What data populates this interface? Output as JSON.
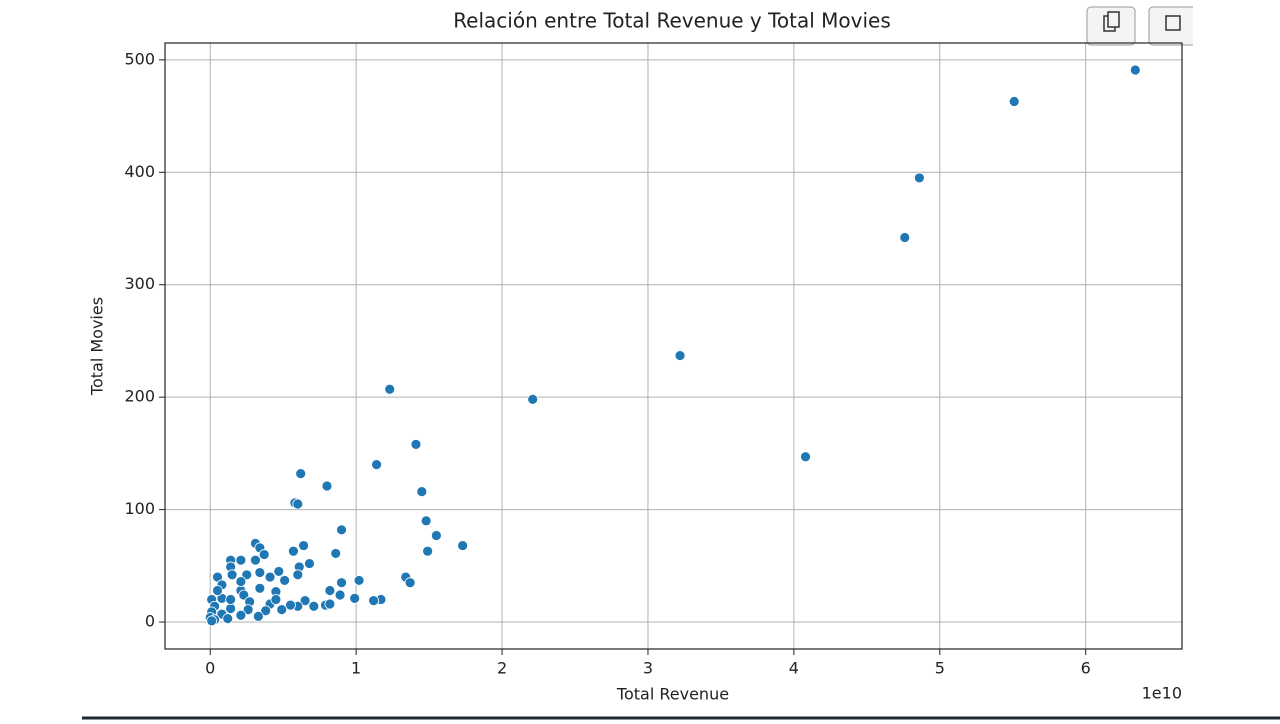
{
  "chart_data": {
    "type": "scatter",
    "title": "Relación entre Total Revenue y Total Movies",
    "x_label": "Total Revenue",
    "y_label": "Total Movies",
    "x_offset_label": "1e10",
    "color": "#1f77b4",
    "grid": true,
    "xlim": [
      -0.31,
      6.66
    ],
    "ylim": [
      -24,
      515
    ],
    "xticks": [
      0,
      1,
      2,
      3,
      4,
      5,
      6
    ],
    "yticks": [
      0,
      100,
      200,
      300,
      400,
      500
    ],
    "series": [
      {
        "name": "Total Movies",
        "x": [
          6.34,
          5.51,
          4.86,
          4.76,
          4.08,
          3.22,
          2.21,
          1.23,
          1.41,
          1.14,
          1.45,
          1.48,
          1.55,
          1.49,
          1.73,
          0.62,
          0.8,
          0.58,
          0.6,
          0.9,
          0.86,
          0.64,
          0.68,
          0.57,
          0.61,
          0.6,
          1.02,
          0.9,
          1.34,
          1.37,
          0.89,
          0.82,
          0.99,
          1.17,
          1.12,
          0.79,
          0.82,
          0.71,
          0.65,
          0.6,
          0.31,
          0.34,
          0.37,
          0.14,
          0.21,
          0.31,
          0.14,
          0.05,
          0.15,
          0.25,
          0.34,
          0.41,
          0.47,
          0.51,
          0.08,
          0.21,
          0.34,
          0.45,
          0.23,
          0.08,
          0.01,
          0.27,
          0.41,
          0.55,
          0.03,
          0.14,
          0.26,
          0.38,
          0.49,
          0.01,
          0.08,
          0.21,
          0.33,
          0.0,
          0.03,
          0.12,
          0.01,
          0.14,
          0.45,
          0.21,
          0.05
        ],
        "values": [
          491,
          463,
          395,
          342,
          147,
          237,
          198,
          207,
          158,
          140,
          116,
          90,
          77,
          63,
          68,
          132,
          121,
          106,
          105,
          82,
          61,
          68,
          52,
          63,
          49,
          42,
          37,
          35,
          40,
          35,
          24,
          28,
          21,
          20,
          19,
          15,
          16,
          14,
          19,
          14,
          70,
          66,
          60,
          55,
          55,
          55,
          49,
          40,
          42,
          42,
          44,
          40,
          45,
          37,
          33,
          28,
          30,
          27,
          24,
          21,
          20,
          18,
          16,
          15,
          14,
          12,
          11,
          10,
          11,
          9,
          7,
          6,
          5,
          4,
          2,
          3,
          1,
          20,
          20,
          36,
          28
        ]
      }
    ]
  }
}
